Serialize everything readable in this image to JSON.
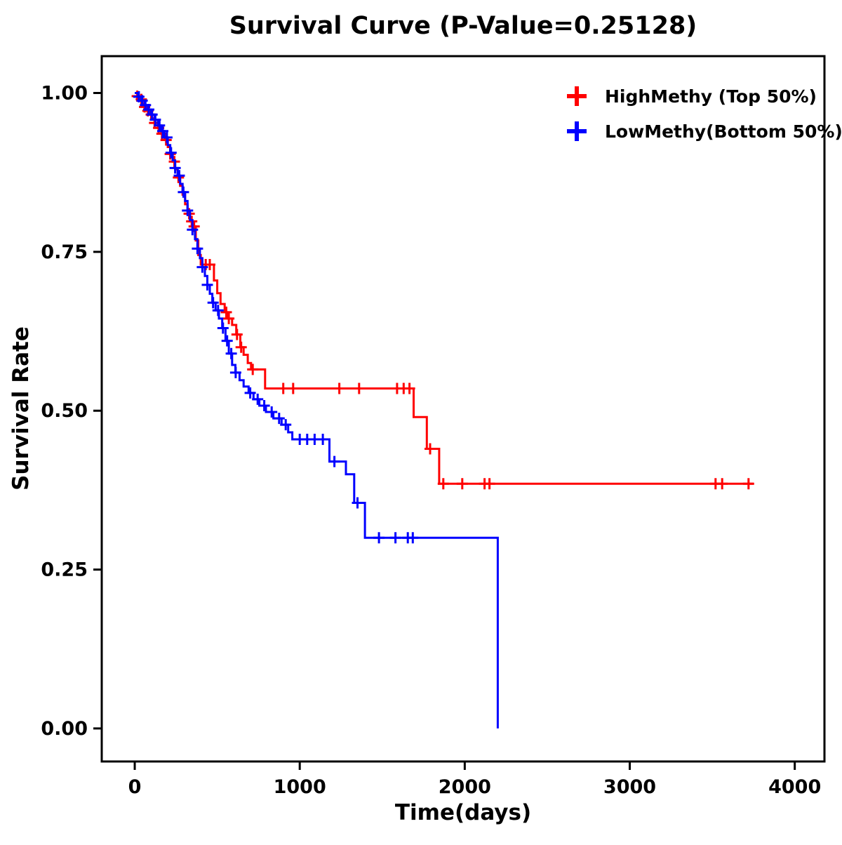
{
  "chart_data": {
    "type": "line",
    "subtype": "kaplan-meier-step-survival",
    "title": "Survival Curve (P-Value=0.25128)",
    "p_value": "0.25128",
    "xlabel": "Time(days)",
    "ylabel": "Survival Rate",
    "xlim": [
      -200,
      4180
    ],
    "ylim": [
      -0.052,
      1.058
    ],
    "xticks": [
      0,
      1000,
      2000,
      3000,
      4000
    ],
    "xtick_labels": [
      "0",
      "1000",
      "2000",
      "3000",
      "4000"
    ],
    "yticks": [
      0,
      0.25,
      0.5,
      0.75,
      1
    ],
    "ytick_labels": [
      "0.00",
      "0.25",
      "0.50",
      "0.75",
      "1.00"
    ],
    "grid": false,
    "legend_position": "top-right",
    "series": [
      {
        "id": "highmethy",
        "name": "HighMethy (Top 50%)",
        "color": "#FF0000",
        "steps": [
          [
            0,
            1.0
          ],
          [
            15,
            0.995
          ],
          [
            30,
            0.99
          ],
          [
            45,
            0.984
          ],
          [
            60,
            0.978
          ],
          [
            75,
            0.972
          ],
          [
            90,
            0.966
          ],
          [
            105,
            0.96
          ],
          [
            120,
            0.953
          ],
          [
            140,
            0.945
          ],
          [
            160,
            0.936
          ],
          [
            180,
            0.926
          ],
          [
            200,
            0.915
          ],
          [
            215,
            0.904
          ],
          [
            230,
            0.892
          ],
          [
            245,
            0.88
          ],
          [
            260,
            0.867
          ],
          [
            275,
            0.854
          ],
          [
            290,
            0.84
          ],
          [
            305,
            0.825
          ],
          [
            320,
            0.81
          ],
          [
            335,
            0.798
          ],
          [
            350,
            0.79
          ],
          [
            370,
            0.768
          ],
          [
            385,
            0.745
          ],
          [
            400,
            0.73
          ],
          [
            480,
            0.705
          ],
          [
            500,
            0.685
          ],
          [
            520,
            0.668
          ],
          [
            545,
            0.655
          ],
          [
            565,
            0.645
          ],
          [
            590,
            0.635
          ],
          [
            615,
            0.62
          ],
          [
            640,
            0.6
          ],
          [
            660,
            0.588
          ],
          [
            685,
            0.575
          ],
          [
            705,
            0.565
          ],
          [
            790,
            0.535
          ],
          [
            1690,
            0.49
          ],
          [
            1770,
            0.44
          ],
          [
            1845,
            0.385
          ],
          [
            3750,
            0.385
          ]
        ],
        "censor_times": [
          15,
          40,
          60,
          80,
          100,
          120,
          145,
          165,
          190,
          215,
          240,
          265,
          330,
          345,
          360,
          430,
          455,
          555,
          570,
          620,
          645,
          715,
          900,
          960,
          1240,
          1360,
          1590,
          1630,
          1665,
          1790,
          1870,
          1985,
          2120,
          2150,
          3520,
          3560,
          3720
        ]
      },
      {
        "id": "lowmethy",
        "name": "LowMethy(Bottom 50%)",
        "color": "#0000FF",
        "steps": [
          [
            0,
            1.0
          ],
          [
            20,
            0.994
          ],
          [
            40,
            0.988
          ],
          [
            60,
            0.981
          ],
          [
            80,
            0.974
          ],
          [
            100,
            0.966
          ],
          [
            120,
            0.958
          ],
          [
            140,
            0.949
          ],
          [
            160,
            0.94
          ],
          [
            180,
            0.93
          ],
          [
            200,
            0.918
          ],
          [
            215,
            0.906
          ],
          [
            230,
            0.894
          ],
          [
            245,
            0.882
          ],
          [
            260,
            0.87
          ],
          [
            275,
            0.857
          ],
          [
            290,
            0.844
          ],
          [
            305,
            0.83
          ],
          [
            320,
            0.815
          ],
          [
            335,
            0.8
          ],
          [
            350,
            0.785
          ],
          [
            365,
            0.77
          ],
          [
            380,
            0.755
          ],
          [
            395,
            0.74
          ],
          [
            410,
            0.726
          ],
          [
            425,
            0.712
          ],
          [
            440,
            0.698
          ],
          [
            455,
            0.684
          ],
          [
            470,
            0.67
          ],
          [
            490,
            0.658
          ],
          [
            510,
            0.645
          ],
          [
            530,
            0.63
          ],
          [
            550,
            0.61
          ],
          [
            570,
            0.59
          ],
          [
            590,
            0.572
          ],
          [
            610,
            0.56
          ],
          [
            635,
            0.548
          ],
          [
            660,
            0.538
          ],
          [
            690,
            0.528
          ],
          [
            720,
            0.518
          ],
          [
            755,
            0.508
          ],
          [
            795,
            0.498
          ],
          [
            840,
            0.488
          ],
          [
            890,
            0.478
          ],
          [
            930,
            0.466
          ],
          [
            955,
            0.455
          ],
          [
            1180,
            0.42
          ],
          [
            1280,
            0.4
          ],
          [
            1330,
            0.355
          ],
          [
            1395,
            0.3
          ],
          [
            2200,
            0.0
          ]
        ],
        "censor_times": [
          25,
          45,
          65,
          85,
          105,
          125,
          150,
          170,
          195,
          220,
          245,
          270,
          295,
          320,
          350,
          380,
          410,
          440,
          475,
          505,
          535,
          560,
          585,
          612,
          700,
          745,
          785,
          830,
          875,
          915,
          1000,
          1045,
          1090,
          1140,
          1210,
          1350,
          1480,
          1580,
          1655,
          1685
        ]
      }
    ]
  }
}
